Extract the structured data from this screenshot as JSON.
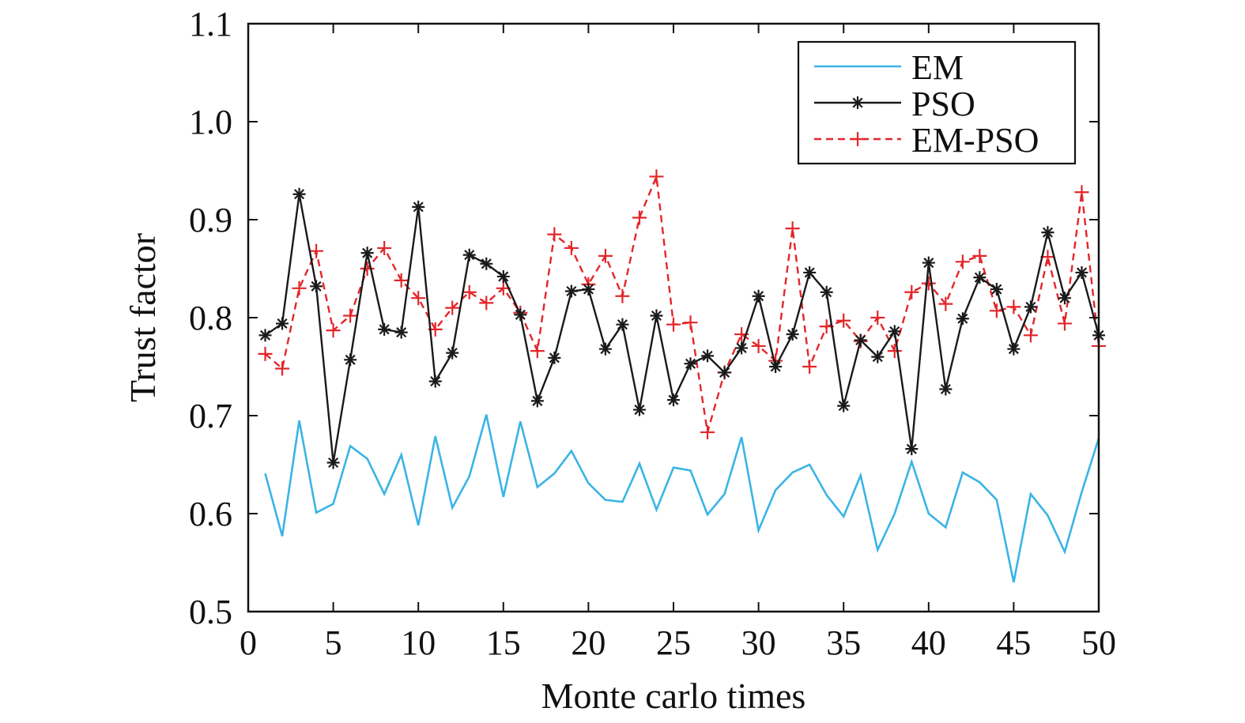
{
  "chart_data": {
    "type": "line",
    "xlabel": "Monte carlo times",
    "ylabel": "Trust factor",
    "xlim": [
      0,
      50
    ],
    "ylim": [
      0.5,
      1.1
    ],
    "xticks": [
      0,
      5,
      10,
      15,
      20,
      25,
      30,
      35,
      40,
      45,
      50
    ],
    "yticks": [
      0.5,
      0.6,
      0.7,
      0.8,
      0.9,
      1.0,
      1.1
    ],
    "xtick_labels": [
      "0",
      "5",
      "10",
      "15",
      "20",
      "25",
      "30",
      "35",
      "40",
      "45",
      "50"
    ],
    "ytick_labels": [
      "0.5",
      "0.6",
      "0.7",
      "0.8",
      "0.9",
      "1.0",
      "1.1"
    ],
    "grid": false,
    "legend_position": "top-right",
    "x": [
      1,
      2,
      3,
      4,
      5,
      6,
      7,
      8,
      9,
      10,
      11,
      12,
      13,
      14,
      15,
      16,
      17,
      18,
      19,
      20,
      21,
      22,
      23,
      24,
      25,
      26,
      27,
      28,
      29,
      30,
      31,
      32,
      33,
      34,
      35,
      36,
      37,
      38,
      39,
      40,
      41,
      42,
      43,
      44,
      45,
      46,
      47,
      48,
      49,
      50
    ],
    "series": [
      {
        "name": "EM",
        "color": "#3ab4e6",
        "style": "solid",
        "marker": "none",
        "values": [
          0.641,
          0.577,
          0.695,
          0.601,
          0.61,
          0.669,
          0.656,
          0.62,
          0.66,
          0.588,
          0.679,
          0.606,
          0.638,
          0.701,
          0.617,
          0.694,
          0.627,
          0.641,
          0.664,
          0.631,
          0.614,
          0.612,
          0.651,
          0.604,
          0.647,
          0.644,
          0.599,
          0.62,
          0.678,
          0.583,
          0.624,
          0.642,
          0.65,
          0.619,
          0.597,
          0.639,
          0.563,
          0.6,
          0.653,
          0.6,
          0.586,
          0.642,
          0.632,
          0.614,
          0.53,
          0.62,
          0.598,
          0.561,
          0.622,
          0.677
        ]
      },
      {
        "name": "PSO",
        "color": "#1a1a1a",
        "style": "solid",
        "marker": "asterisk",
        "values": [
          0.782,
          0.794,
          0.926,
          0.832,
          0.652,
          0.757,
          0.866,
          0.788,
          0.785,
          0.913,
          0.735,
          0.764,
          0.864,
          0.855,
          0.842,
          0.803,
          0.715,
          0.759,
          0.827,
          0.829,
          0.768,
          0.793,
          0.706,
          0.802,
          0.716,
          0.753,
          0.761,
          0.744,
          0.769,
          0.822,
          0.75,
          0.783,
          0.846,
          0.826,
          0.71,
          0.777,
          0.76,
          0.786,
          0.666,
          0.856,
          0.727,
          0.799,
          0.841,
          0.829,
          0.768,
          0.811,
          0.887,
          0.82,
          0.846,
          0.782
        ]
      },
      {
        "name": "EM-PSO",
        "color": "#e3262a",
        "style": "dashed",
        "marker": "plus",
        "values": [
          0.763,
          0.748,
          0.83,
          0.868,
          0.787,
          0.802,
          0.85,
          0.871,
          0.838,
          0.82,
          0.788,
          0.81,
          0.826,
          0.815,
          0.83,
          0.805,
          0.766,
          0.885,
          0.871,
          0.834,
          0.863,
          0.822,
          0.902,
          0.944,
          0.793,
          0.795,
          0.683,
          0.744,
          0.783,
          0.771,
          0.756,
          0.891,
          0.75,
          0.791,
          0.797,
          0.776,
          0.8,
          0.766,
          0.826,
          0.835,
          0.814,
          0.857,
          0.863,
          0.807,
          0.811,
          0.782,
          0.862,
          0.794,
          0.928,
          0.771
        ]
      }
    ]
  }
}
